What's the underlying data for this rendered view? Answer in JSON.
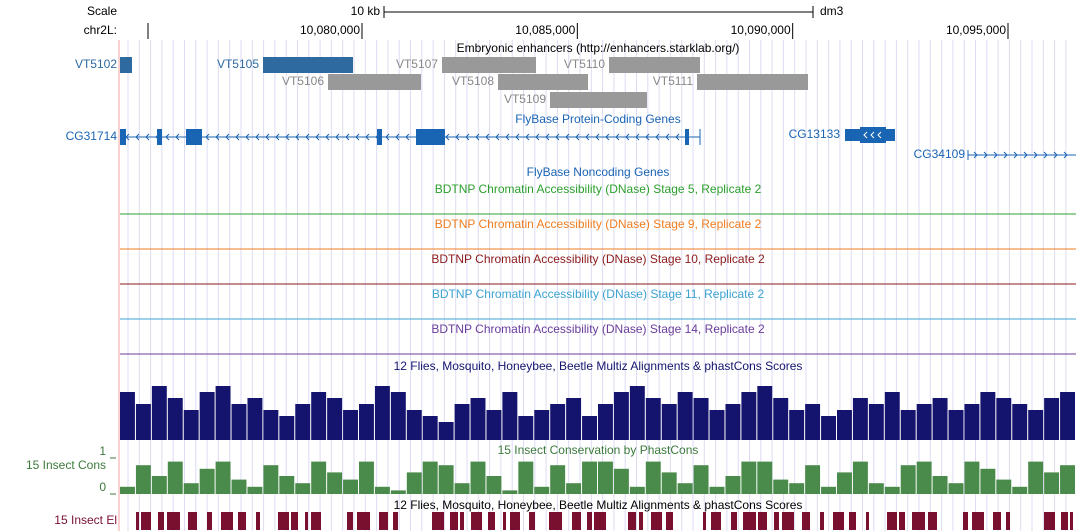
{
  "ruler": {
    "scale_label": "Scale",
    "scale_bar_label": "10 kb",
    "assembly": "dm3",
    "chrom_label": "chr2L:",
    "ticks": [
      {
        "value": 10080000,
        "label": "10,080,000"
      },
      {
        "value": 10085000,
        "label": "10,085,000"
      },
      {
        "value": 10090000,
        "label": "10,090,000"
      },
      {
        "value": 10095000,
        "label": "10,095,000"
      }
    ]
  },
  "tracks": {
    "enhancers": {
      "title": "Embryonic enhancers (http://enhancers.starklab.org/)",
      "items": [
        "VT5102",
        "VT5105",
        "VT5107",
        "VT5110",
        "VT5106",
        "VT5108",
        "VT5111",
        "VT5109"
      ]
    },
    "protein_coding_genes": {
      "title": "FlyBase Protein-Coding Genes",
      "genes": [
        "CG31714",
        "CG13133",
        "CG34109"
      ]
    },
    "noncoding_genes": {
      "title": "FlyBase Noncoding Genes"
    },
    "dnase": [
      {
        "title": "BDTNP Chromatin Accessibility (DNase) Stage 5, Replicate 2",
        "color": "#2ca02c"
      },
      {
        "title": "BDTNP Chromatin Accessibility (DNase) Stage 9, Replicate 2",
        "color": "#f07d20"
      },
      {
        "title": "BDTNP Chromatin Accessibility (DNase) Stage 10, Replicate 2",
        "color": "#8b1a1a"
      },
      {
        "title": "BDTNP Chromatin Accessibility (DNase) Stage 11, Replicate 2",
        "color": "#3ba3d0"
      },
      {
        "title": "BDTNP Chromatin Accessibility (DNase) Stage 14, Replicate 2",
        "color": "#6a3d9a"
      }
    ],
    "multiz": {
      "title": "12 Flies, Mosquito, Honeybee, Beetle Multiz Alignments & phastCons Scores",
      "color": "#14146e",
      "values": [
        0.8,
        0.6,
        0.9,
        0.7,
        0.5,
        0.8,
        0.9,
        0.6,
        0.7,
        0.5,
        0.4,
        0.6,
        0.8,
        0.7,
        0.5,
        0.6,
        0.9,
        0.8,
        0.5,
        0.4,
        0.3,
        0.6,
        0.7,
        0.5,
        0.8,
        0.4,
        0.5,
        0.6,
        0.7,
        0.4,
        0.6,
        0.8,
        0.9,
        0.7,
        0.6,
        0.8,
        0.7,
        0.5,
        0.6,
        0.8,
        0.9,
        0.7,
        0.5,
        0.6,
        0.4,
        0.5,
        0.7,
        0.6,
        0.8,
        0.5,
        0.6,
        0.7,
        0.5,
        0.6,
        0.8,
        0.7,
        0.6,
        0.5,
        0.7,
        0.8
      ]
    },
    "phastcons": {
      "title": "15 Insect Conservation by PhastCons",
      "label": "15 Insect Cons",
      "color": "#4a8a4a",
      "ylim": [
        0,
        1
      ],
      "yticks": [
        0,
        1
      ],
      "values": [
        0.2,
        0.8,
        0.5,
        0.9,
        0.3,
        0.7,
        0.9,
        0.4,
        0.2,
        0.8,
        0.5,
        0.3,
        0.9,
        0.6,
        0.4,
        0.9,
        0.2,
        0.1,
        0.6,
        0.9,
        0.8,
        0.3,
        0.9,
        0.5,
        0.1,
        0.9,
        0.2,
        0.8,
        0.3,
        0.9,
        0.9,
        0.7,
        0.2,
        0.9,
        0.6,
        0.3,
        0.8,
        0.2,
        0.5,
        0.9,
        0.9,
        0.4,
        0.3,
        0.8,
        0.2,
        0.6,
        0.9,
        0.3,
        0.2,
        0.8,
        0.9,
        0.5,
        0.3,
        0.9,
        0.7,
        0.4,
        0.2,
        0.9,
        0.6,
        0.8
      ]
    },
    "elements": {
      "title": "12 Flies, Mosquito, Honeybee, Beetle Multiz Alignments & phastCons Scores",
      "label": "15 Insect El",
      "color": "#7a1030"
    }
  }
}
